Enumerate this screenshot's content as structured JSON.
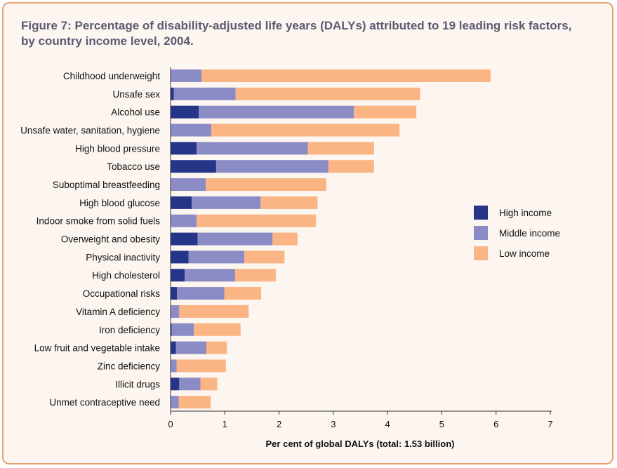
{
  "figure": {
    "title": "Figure 7: Percentage of disability-adjusted life years (DALYs) attributed to 19 leading risk factors, by country income level, 2004."
  },
  "colors": {
    "high": "#253588",
    "middle": "#8b8cc6",
    "low": "#fbb585",
    "frame": "#e8a070",
    "background": "#fdf6f0"
  },
  "chart_data": {
    "type": "bar",
    "orientation": "horizontal",
    "stacked": true,
    "title": "Figure 7: Percentage of disability-adjusted life years (DALYs) attributed to 19 leading risk factors, by country income level, 2004.",
    "xlabel": "Per cent of global DALYs (total: 1.53 billion)",
    "ylabel": "",
    "xlim": [
      0,
      7
    ],
    "xticks": [
      "0",
      "1",
      "2",
      "3",
      "4",
      "5",
      "6",
      "7"
    ],
    "categories": [
      "Childhood underweight",
      "Unsafe sex",
      "Alcohol use",
      "Unsafe water, sanitation, hygiene",
      "High blood pressure",
      "Tobacco use",
      "Suboptimal breastfeeding",
      "High blood glucose",
      "Indoor smoke from solid fuels",
      "Overweight and obesity",
      "Physical inactivity",
      "High cholesterol",
      "Occupational risks",
      "Vitamin A deficiency",
      "Iron deficiency",
      "Low fruit and vegetable intake",
      "Zinc deficiency",
      "Illicit drugs",
      "Unmet contraceptive need"
    ],
    "series": [
      {
        "name": "High income",
        "key": "high",
        "values": [
          0.0,
          0.06,
          0.52,
          0.0,
          0.48,
          0.84,
          0.0,
          0.39,
          0.0,
          0.5,
          0.33,
          0.26,
          0.12,
          0.0,
          0.02,
          0.1,
          0.0,
          0.16,
          0.0
        ]
      },
      {
        "name": "Middle income",
        "key": "middle",
        "values": [
          0.57,
          1.14,
          2.86,
          0.75,
          2.05,
          2.07,
          0.65,
          1.27,
          0.48,
          1.38,
          1.03,
          0.93,
          0.87,
          0.16,
          0.41,
          0.56,
          0.11,
          0.39,
          0.15
        ]
      },
      {
        "name": "Low income",
        "key": "low",
        "values": [
          5.33,
          3.4,
          1.15,
          3.47,
          1.22,
          0.84,
          2.22,
          1.05,
          2.2,
          0.46,
          0.74,
          0.75,
          0.68,
          1.28,
          0.86,
          0.38,
          0.91,
          0.31,
          0.59
        ]
      }
    ],
    "legend": {
      "position": "right",
      "entries": [
        "High income",
        "Middle income",
        "Low income"
      ]
    },
    "grid": false
  }
}
